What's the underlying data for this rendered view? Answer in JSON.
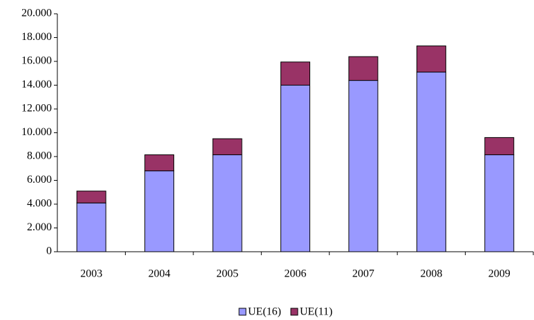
{
  "chart_data": {
    "type": "stacked_bar",
    "categories": [
      "2003",
      "2004",
      "2005",
      "2006",
      "2007",
      "2008",
      "2009"
    ],
    "series": [
      {
        "name": "UE(16)",
        "color": "#9999ff",
        "values": [
          4100,
          6800,
          8150,
          14000,
          14400,
          15100,
          8150
        ]
      },
      {
        "name": "UE(11)",
        "color": "#993366",
        "values": [
          1000,
          1350,
          1350,
          1950,
          2000,
          2200,
          1450
        ]
      }
    ],
    "ylim": [
      0,
      20000
    ],
    "yticks": [
      0,
      {
        "value": 2000,
        "label": "2.000"
      },
      {
        "value": 4000,
        "label": "4.000"
      },
      {
        "value": 6000,
        "label": "6.000"
      },
      {
        "value": 8000,
        "label": "8.000"
      },
      {
        "value": 10000,
        "label": "10.000"
      },
      {
        "value": 12000,
        "label": "12.000"
      },
      {
        "value": 14000,
        "label": "14.000"
      },
      {
        "value": 16000,
        "label": "16.000"
      },
      {
        "value": 18000,
        "label": "18.000"
      },
      {
        "value": 20000,
        "label": "20.000"
      }
    ],
    "legend": "bottom"
  }
}
